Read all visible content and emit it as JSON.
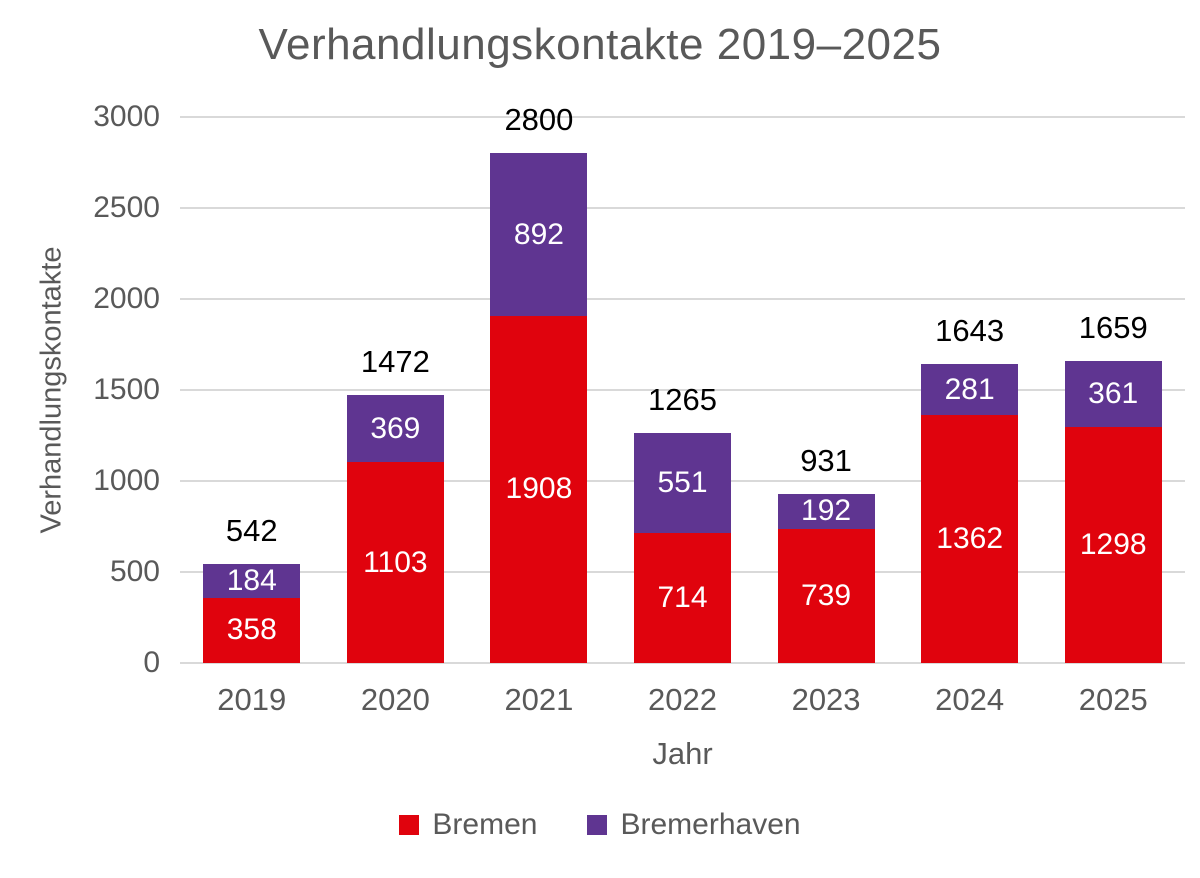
{
  "chart_data": {
    "type": "bar",
    "stacked": true,
    "title": "Verhandlungskontakte 2019–2025",
    "xlabel": "Jahr",
    "ylabel": "Verhandlungskontakte",
    "categories": [
      "2019",
      "2020",
      "2021",
      "2022",
      "2023",
      "2024",
      "2025"
    ],
    "series": [
      {
        "name": "Bremen",
        "color": "#E0030D",
        "values": [
          358,
          1103,
          1908,
          714,
          739,
          1362,
          1298
        ]
      },
      {
        "name": "Bremerhaven",
        "color": "#5F3591",
        "values": [
          184,
          369,
          892,
          551,
          192,
          281,
          361
        ]
      }
    ],
    "totals": [
      542,
      1472,
      2800,
      1265,
      931,
      1643,
      1659
    ],
    "ylim": [
      0,
      3000
    ],
    "yticks": [
      0,
      500,
      1000,
      1500,
      2000,
      2500,
      3000
    ],
    "grid": true,
    "legend_position": "bottom"
  },
  "colors": {
    "axis_text": "#595959",
    "gridline": "#D9D9D9",
    "total_label": "#000000",
    "segment_label": "#FFFFFF",
    "background": "#FFFFFF"
  }
}
